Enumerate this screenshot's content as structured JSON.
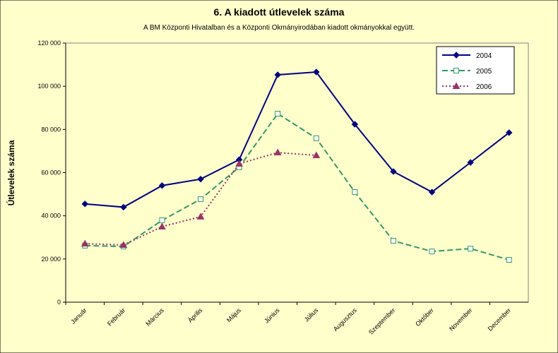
{
  "chart_data": {
    "type": "line",
    "title": "6. A  kiadott útlevelek száma",
    "subtitle": "A BM Központi Hivatalban és a Központi Okmányirodában kiadott okmányokkal együtt.",
    "y_label": "Útlevelek száma",
    "categories": [
      "Január",
      "Február",
      "Március",
      "Április",
      "Május",
      "Június",
      "Július",
      "Augusztus",
      "Szeptember",
      "Október",
      "November",
      "December"
    ],
    "series": [
      {
        "name": "2004",
        "color": "#000080",
        "marker": "diamond",
        "dash": "solid",
        "values": [
          45500,
          44000,
          54000,
          57000,
          66000,
          105300,
          106600,
          82400,
          60500,
          51000,
          64700,
          78500
        ]
      },
      {
        "name": "2005",
        "color": "#339966",
        "marker": "square",
        "dash": "dashed",
        "values": [
          26200,
          25800,
          37900,
          47700,
          62500,
          87300,
          75900,
          51000,
          28400,
          23500,
          24800,
          19600
        ]
      },
      {
        "name": "2006",
        "color": "#993366",
        "marker": "triangle",
        "dash": "dotted",
        "values": [
          27100,
          26500,
          35000,
          39600,
          64100,
          69300,
          68000,
          null,
          null,
          null,
          null,
          null
        ]
      }
    ],
    "ylim": [
      0,
      120000
    ],
    "yticks": [
      0,
      {
        "value": 20000,
        "label": "20 000"
      },
      {
        "value": 40000,
        "label": "40 000"
      },
      {
        "value": 60000,
        "label": "60 000"
      },
      {
        "value": 80000,
        "label": "80 000"
      },
      {
        "value": 100000,
        "label": "100 000"
      },
      {
        "value": 120000,
        "label": "120 000"
      }
    ],
    "legend": "upper right",
    "grid": false
  }
}
